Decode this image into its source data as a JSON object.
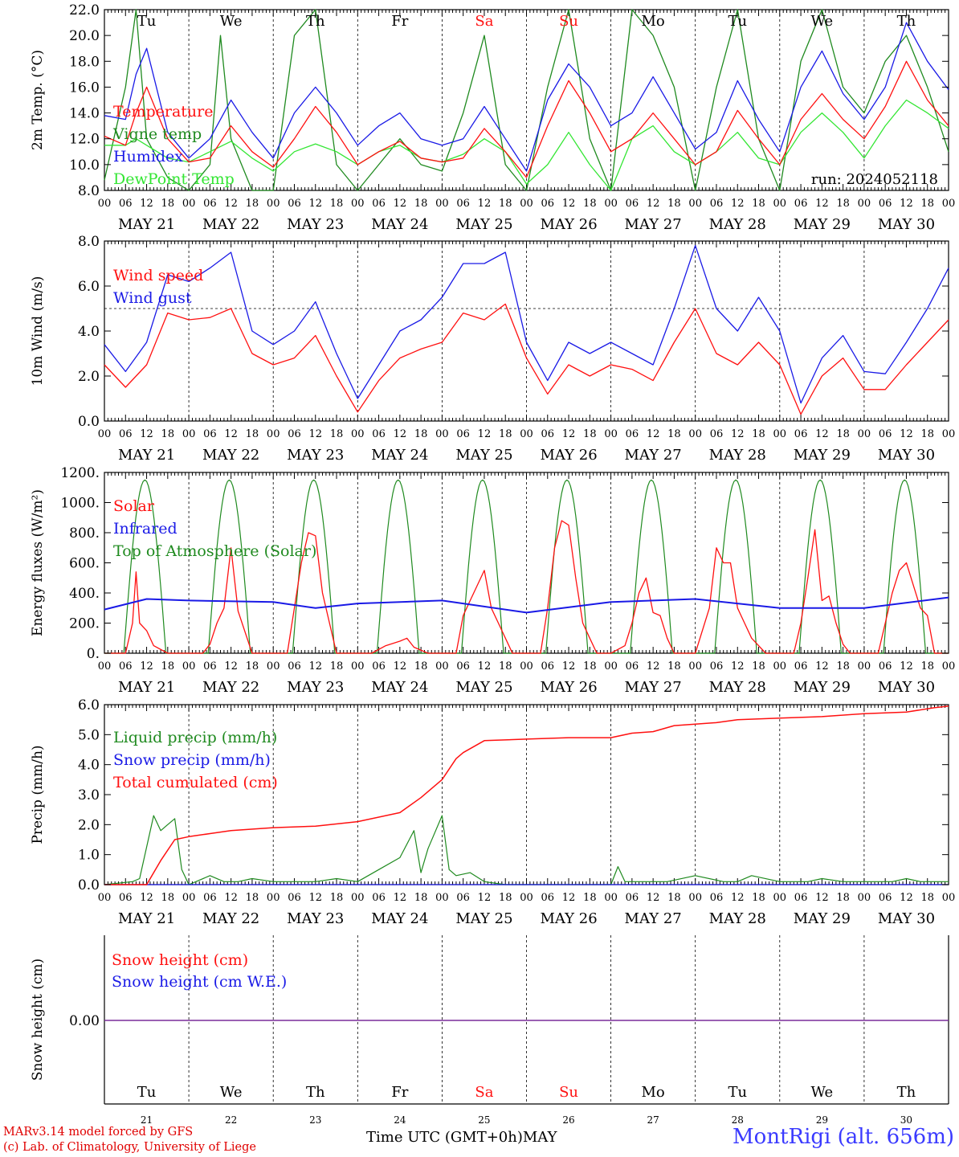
{
  "colors": {
    "red": "#ff1010",
    "blue": "#1a1ae6",
    "green": "#1f8a1f",
    "lightgreen": "#33e633",
    "purple": "#7a2c9a",
    "weekend": "#ff1010"
  },
  "axis": {
    "days": [
      "MAY 21",
      "MAY 22",
      "MAY 23",
      "MAY 24",
      "MAY 25",
      "MAY 26",
      "MAY 27",
      "MAY 28",
      "MAY 29",
      "MAY 30"
    ],
    "hour_ticks": [
      "00",
      "06",
      "12",
      "18"
    ],
    "end_tick": "00",
    "weekdays": [
      "Tu",
      "We",
      "Th",
      "Fr",
      "Sa",
      "Su",
      "Mo",
      "Tu",
      "We",
      "Th"
    ],
    "weekend_index": [
      4,
      5
    ],
    "day_numbers": [
      "21",
      "22",
      "23",
      "24",
      "25",
      "26",
      "27",
      "28",
      "29",
      "30"
    ]
  },
  "footer": {
    "credit1": "MARv3.14 model forced by GFS",
    "credit2": "(c) Lab. of Climatology, University of Liege",
    "xlabel": "Time UTC (GMT+0h)",
    "month": "MAY",
    "station": "MontRigi (alt. 656m)"
  },
  "chart_data": [
    {
      "type": "line",
      "ylabel": "2m Temp. (°C)",
      "ylim": [
        8.0,
        22.0
      ],
      "yticks": [
        "8.0",
        "10.0",
        "12.0",
        "14.0",
        "16.0",
        "18.0",
        "20.0",
        "22.0"
      ],
      "annotation": "run: 2024052118",
      "x_unit": "hours since 2024-05-21 00 UTC",
      "series": [
        {
          "name": "Temperature",
          "color": "red",
          "x": [
            0,
            6,
            9,
            12,
            18,
            24,
            30,
            36,
            42,
            48,
            54,
            60,
            66,
            72,
            78,
            84,
            90,
            96,
            102,
            108,
            114,
            120,
            126,
            132,
            138,
            144,
            150,
            156,
            162,
            168,
            174,
            180,
            186,
            192,
            198,
            204,
            210,
            216,
            222,
            228,
            234,
            240
          ],
          "values": [
            12.2,
            11.5,
            14.0,
            16.0,
            12.0,
            10.2,
            10.5,
            13.0,
            11.0,
            9.8,
            12.0,
            14.5,
            12.5,
            10.0,
            11.0,
            11.8,
            10.5,
            10.2,
            10.5,
            12.8,
            11.0,
            9.0,
            13.0,
            16.5,
            14.0,
            11.0,
            12.0,
            14.0,
            12.0,
            10.0,
            11.0,
            14.2,
            12.0,
            10.0,
            13.5,
            15.5,
            13.5,
            12.0,
            14.5,
            18.0,
            15.0,
            13.0
          ]
        },
        {
          "name": "Vigne temp",
          "color": "green",
          "x": [
            0,
            6,
            9,
            12,
            18,
            24,
            30,
            33,
            36,
            42,
            48,
            54,
            60,
            66,
            72,
            78,
            84,
            90,
            96,
            102,
            108,
            114,
            120,
            126,
            132,
            138,
            144,
            150,
            156,
            162,
            168,
            174,
            180,
            186,
            192,
            198,
            204,
            210,
            216,
            222,
            228,
            234,
            240
          ],
          "values": [
            8.8,
            16.0,
            26.0,
            12.0,
            9.0,
            6.0,
            10.0,
            20.0,
            12.0,
            8.0,
            6.0,
            20.0,
            24.0,
            10.0,
            8.0,
            10.0,
            12.0,
            10.0,
            9.5,
            14.0,
            20.0,
            10.0,
            8.0,
            16.0,
            24.0,
            12.0,
            8.0,
            22.0,
            20.0,
            16.0,
            6.0,
            16.0,
            24.0,
            12.0,
            8.0,
            18.0,
            28.0,
            16.0,
            14.0,
            18.0,
            20.0,
            16.0,
            11.0
          ]
        },
        {
          "name": "Humidex",
          "color": "blue",
          "x": [
            0,
            6,
            9,
            12,
            18,
            24,
            30,
            36,
            42,
            48,
            54,
            60,
            66,
            72,
            78,
            84,
            90,
            96,
            102,
            108,
            114,
            120,
            126,
            132,
            138,
            144,
            150,
            156,
            162,
            168,
            174,
            180,
            186,
            192,
            198,
            204,
            210,
            216,
            222,
            228,
            234,
            240
          ],
          "values": [
            13.8,
            13.5,
            17.0,
            19.0,
            12.5,
            10.5,
            12.0,
            15.0,
            12.5,
            10.5,
            14.0,
            16.0,
            14.0,
            11.5,
            13.0,
            14.0,
            12.0,
            11.5,
            12.0,
            14.5,
            12.0,
            9.5,
            15.0,
            17.8,
            16.0,
            13.0,
            14.0,
            16.8,
            14.0,
            11.2,
            12.5,
            16.5,
            13.5,
            11.0,
            16.0,
            18.8,
            15.5,
            13.5,
            16.0,
            21.0,
            18.0,
            15.8
          ]
        },
        {
          "name": "DewPoint Temp",
          "color": "lightgreen",
          "x": [
            0,
            6,
            9,
            12,
            18,
            24,
            30,
            36,
            42,
            48,
            54,
            60,
            66,
            72,
            78,
            84,
            90,
            96,
            102,
            108,
            114,
            120,
            126,
            132,
            138,
            144,
            150,
            156,
            162,
            168,
            174,
            180,
            186,
            192,
            198,
            204,
            210,
            216,
            222,
            228,
            234,
            240
          ],
          "values": [
            11.5,
            11.5,
            12.0,
            11.5,
            10.5,
            10.2,
            11.0,
            11.8,
            10.5,
            9.5,
            11.0,
            11.6,
            11.0,
            10.0,
            11.0,
            11.5,
            10.5,
            10.2,
            10.8,
            12.0,
            11.0,
            8.5,
            10.0,
            12.5,
            10.0,
            8.0,
            12.0,
            13.0,
            11.0,
            10.0,
            11.0,
            12.5,
            10.5,
            10.0,
            12.5,
            14.0,
            12.5,
            10.5,
            13.0,
            15.0,
            14.0,
            12.8
          ]
        }
      ]
    },
    {
      "type": "line",
      "ylabel": "10m Wind (m/s)",
      "ylim": [
        0.0,
        8.0
      ],
      "yticks": [
        "0.0",
        "2.0",
        "4.0",
        "6.0",
        "8.0"
      ],
      "reference_line": 5.0,
      "x_unit": "hours since 2024-05-21 00 UTC",
      "series": [
        {
          "name": "Wind speed",
          "color": "red",
          "x": [
            0,
            6,
            12,
            18,
            24,
            30,
            36,
            42,
            48,
            54,
            60,
            66,
            72,
            78,
            84,
            90,
            96,
            102,
            108,
            114,
            120,
            126,
            132,
            138,
            144,
            150,
            156,
            162,
            168,
            174,
            180,
            186,
            192,
            198,
            204,
            210,
            216,
            222,
            228,
            234,
            240
          ],
          "values": [
            2.5,
            1.5,
            2.5,
            4.8,
            4.5,
            4.6,
            5.0,
            3.0,
            2.5,
            2.8,
            3.8,
            2.0,
            0.4,
            1.8,
            2.8,
            3.2,
            3.5,
            4.8,
            4.5,
            5.2,
            2.8,
            1.2,
            2.5,
            2.0,
            2.5,
            2.3,
            1.8,
            3.5,
            5.0,
            3.0,
            2.5,
            3.5,
            2.5,
            0.3,
            2.0,
            2.8,
            1.4,
            1.4,
            2.5,
            3.5,
            4.5
          ]
        },
        {
          "name": "Wind gust",
          "color": "blue",
          "x": [
            0,
            6,
            12,
            18,
            24,
            30,
            36,
            42,
            48,
            54,
            60,
            66,
            72,
            78,
            84,
            90,
            96,
            102,
            108,
            114,
            120,
            126,
            132,
            138,
            144,
            150,
            156,
            162,
            168,
            174,
            180,
            186,
            192,
            198,
            204,
            210,
            216,
            222,
            228,
            234,
            240
          ],
          "values": [
            3.4,
            2.2,
            3.5,
            6.5,
            6.2,
            6.8,
            7.5,
            4.0,
            3.4,
            4.0,
            5.3,
            3.0,
            1.0,
            2.5,
            4.0,
            4.5,
            5.5,
            7.0,
            7.0,
            7.5,
            3.5,
            1.8,
            3.5,
            3.0,
            3.5,
            3.0,
            2.5,
            5.0,
            7.8,
            5.0,
            4.0,
            5.5,
            4.0,
            0.8,
            2.8,
            3.8,
            2.2,
            2.1,
            3.5,
            5.0,
            6.8
          ]
        }
      ]
    },
    {
      "type": "line",
      "ylabel": "Energy fluxes (W/m²)",
      "ylim": [
        0,
        1200
      ],
      "yticks": [
        "0.",
        "200.",
        "400.",
        "600.",
        "800.",
        "1000.",
        "1200."
      ],
      "x_unit": "hours since 2024-05-21 00 UTC",
      "series": [
        {
          "name": "Solar",
          "color": "red",
          "x": [
            0,
            4,
            6,
            8,
            9,
            10,
            12,
            14,
            18,
            24,
            28,
            30,
            32,
            34,
            36,
            38,
            42,
            48,
            52,
            54,
            56,
            58,
            60,
            62,
            66,
            72,
            76,
            80,
            84,
            86,
            88,
            92,
            96,
            100,
            102,
            104,
            106,
            108,
            110,
            112,
            116,
            120,
            124,
            126,
            128,
            130,
            132,
            134,
            136,
            138,
            140,
            144,
            148,
            150,
            152,
            154,
            156,
            158,
            160,
            162,
            164,
            168,
            172,
            174,
            176,
            178,
            180,
            182,
            184,
            186,
            188,
            192,
            196,
            198,
            200,
            202,
            204,
            206,
            208,
            210,
            212,
            216,
            220,
            222,
            224,
            226,
            228,
            230,
            232,
            234,
            236,
            240
          ],
          "values": [
            0,
            0,
            0,
            200,
            540,
            200,
            150,
            50,
            0,
            0,
            0,
            60,
            200,
            300,
            700,
            280,
            0,
            0,
            0,
            300,
            600,
            800,
            780,
            400,
            0,
            0,
            0,
            50,
            80,
            100,
            40,
            0,
            0,
            0,
            250,
            350,
            450,
            550,
            300,
            200,
            0,
            0,
            0,
            300,
            700,
            880,
            850,
            500,
            200,
            100,
            0,
            0,
            50,
            200,
            400,
            500,
            270,
            250,
            100,
            0,
            0,
            0,
            300,
            700,
            600,
            600,
            300,
            200,
            100,
            50,
            0,
            0,
            0,
            200,
            500,
            820,
            350,
            380,
            200,
            60,
            0,
            0,
            0,
            200,
            400,
            550,
            600,
            450,
            300,
            250,
            0,
            0
          ]
        },
        {
          "name": "Infrared",
          "color": "blue",
          "values_const": true,
          "x": [
            0,
            12,
            24,
            48,
            60,
            72,
            96,
            120,
            144,
            168,
            192,
            216,
            240
          ],
          "values": [
            290,
            360,
            350,
            340,
            300,
            330,
            350,
            270,
            340,
            360,
            300,
            300,
            370
          ]
        },
        {
          "name": "Top of Atmosphere (Solar)",
          "color": "green",
          "periodic": {
            "sunrise_hour": 5.5,
            "sunset_hour": 17.5,
            "peak": 1150
          }
        }
      ]
    },
    {
      "type": "line",
      "ylabel": "Precip (mm/h)",
      "ylim": [
        0.0,
        6.0
      ],
      "yticks": [
        "0.0",
        "1.0",
        "2.0",
        "3.0",
        "4.0",
        "5.0",
        "6.0"
      ],
      "x_unit": "hours since 2024-05-21 00 UTC",
      "series": [
        {
          "name": "Liquid precip (mm/h)",
          "color": "green",
          "x": [
            0,
            8,
            10,
            14,
            16,
            18,
            20,
            22,
            24,
            26,
            30,
            34,
            38,
            42,
            48,
            60,
            66,
            72,
            78,
            84,
            88,
            90,
            92,
            96,
            98,
            100,
            104,
            108,
            114,
            120,
            132,
            144,
            146,
            148,
            152,
            160,
            168,
            176,
            180,
            184,
            192,
            200,
            204,
            210,
            216,
            224,
            228,
            232,
            240
          ],
          "values": [
            0,
            0.1,
            0.2,
            2.3,
            1.8,
            2.0,
            2.2,
            0.5,
            0.0,
            0.1,
            0.3,
            0.1,
            0.1,
            0.2,
            0.1,
            0.1,
            0.2,
            0.1,
            0.5,
            0.9,
            1.8,
            0.4,
            1.2,
            2.3,
            0.5,
            0.3,
            0.4,
            0.1,
            0.0,
            0.0,
            0.0,
            0.0,
            0.6,
            0.1,
            0.1,
            0.1,
            0.3,
            0.1,
            0.1,
            0.3,
            0.1,
            0.1,
            0.2,
            0.1,
            0.1,
            0.1,
            0.2,
            0.1,
            0.1
          ]
        },
        {
          "name": "Snow precip (mm/h)",
          "color": "blue",
          "x": [
            0,
            240
          ],
          "values": [
            0,
            0
          ]
        },
        {
          "name": "Total cumulated (cm)",
          "color": "red",
          "x": [
            0,
            12,
            16,
            20,
            24,
            30,
            36,
            48,
            60,
            72,
            84,
            90,
            96,
            100,
            102,
            108,
            120,
            132,
            144,
            150,
            156,
            162,
            168,
            174,
            180,
            192,
            204,
            216,
            228,
            236,
            240
          ],
          "values": [
            0,
            0,
            0.8,
            1.5,
            1.6,
            1.7,
            1.8,
            1.9,
            1.95,
            2.1,
            2.4,
            2.9,
            3.5,
            4.2,
            4.4,
            4.8,
            4.85,
            4.9,
            4.9,
            5.05,
            5.1,
            5.3,
            5.35,
            5.4,
            5.5,
            5.55,
            5.6,
            5.7,
            5.75,
            5.9,
            5.95
          ]
        }
      ]
    },
    {
      "type": "line",
      "ylabel": "Snow height (cm)",
      "ytick": "0.00",
      "x_unit": "hours since 2024-05-21 00 UTC",
      "series": [
        {
          "name": "Snow height (cm)",
          "color": "red",
          "x": [
            0,
            240
          ],
          "values": [
            0,
            0
          ]
        },
        {
          "name": "Snow height (cm W.E.)",
          "color": "blue",
          "x": [
            0,
            240
          ],
          "values": [
            0,
            0
          ]
        }
      ]
    }
  ]
}
